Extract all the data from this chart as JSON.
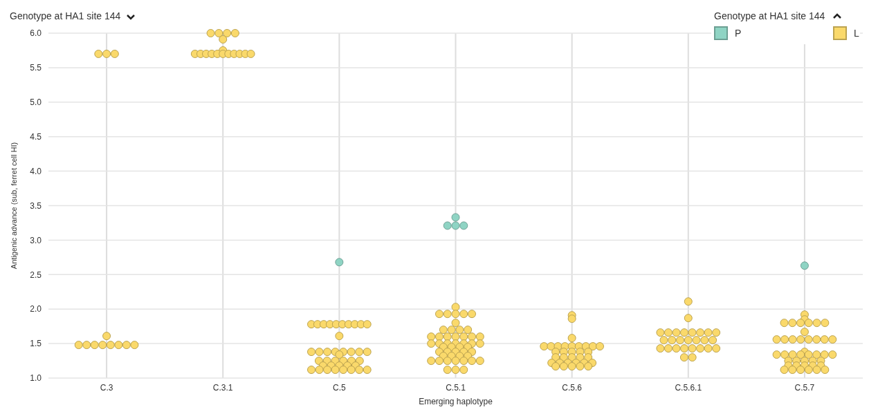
{
  "chart_data": {
    "type": "scatter",
    "title": "Genotype at HA1 site 144",
    "xlabel": "Emerging haplotype",
    "ylabel": "Antigenic advance (sub, ferret cell HI)",
    "legend_title": "Genotype at HA1 site 144",
    "categories": [
      "C.3",
      "C.3.1",
      "C.5",
      "C.5.1",
      "C.5.6",
      "C.5.6.1",
      "C.5.7"
    ],
    "ylim": [
      1,
      6
    ],
    "yticks": [
      {
        "value": 1,
        "label": "1.0"
      },
      {
        "value": 1.5,
        "label": "1.5"
      },
      {
        "value": 2,
        "label": "2.0"
      },
      {
        "value": 2.5,
        "label": "2.5"
      },
      {
        "value": 3,
        "label": "3.0"
      },
      {
        "value": 3.5,
        "label": "3.5"
      },
      {
        "value": 4,
        "label": "4.0"
      },
      {
        "value": 4.5,
        "label": "4.5"
      },
      {
        "value": 5,
        "label": "5.0"
      },
      {
        "value": 5.5,
        "label": "5.5"
      },
      {
        "value": 6,
        "label": "6.0"
      }
    ],
    "grid": true,
    "legend": "top right",
    "marker": "circle",
    "series": [
      {
        "name": "P",
        "color": "#8fd4c4",
        "x": [
          "C.5",
          "C.5.1",
          "C.5.1",
          "C.5.1",
          "C.5.1",
          "C.5.7"
        ],
        "values": [
          2.68,
          3.21,
          3.33,
          3.21,
          3.21,
          2.63
        ]
      },
      {
        "name": "L",
        "color": "#fad96b",
        "x": [
          "C.3",
          "C.3",
          "C.3",
          "C.3",
          "C.3",
          "C.3",
          "C.3",
          "C.3",
          "C.3",
          "C.3",
          "C.3",
          "C.3",
          "C.3.1",
          "C.3.1",
          "C.3.1",
          "C.3.1",
          "C.3.1",
          "C.3.1",
          "C.3.1",
          "C.3.1",
          "C.3.1",
          "C.3.1",
          "C.3.1",
          "C.3.1",
          "C.3.1",
          "C.3.1",
          "C.3.1",
          "C.3.1",
          "C.3.1",
          "C.5",
          "C.5",
          "C.5",
          "C.5",
          "C.5",
          "C.5",
          "C.5",
          "C.5",
          "C.5",
          "C.5",
          "C.5",
          "C.5",
          "C.5",
          "C.5",
          "C.5",
          "C.5",
          "C.5",
          "C.5",
          "C.5",
          "C.5",
          "C.5",
          "C.5",
          "C.5",
          "C.5",
          "C.5",
          "C.5",
          "C.5",
          "C.5",
          "C.5",
          "C.5",
          "C.5",
          "C.5",
          "C.5",
          "C.5",
          "C.5",
          "C.5",
          "C.5",
          "C.5",
          "C.5",
          "C.5.1",
          "C.5.1",
          "C.5.1",
          "C.5.1",
          "C.5.1",
          "C.5.1",
          "C.5.1",
          "C.5.1",
          "C.5.1",
          "C.5.1",
          "C.5.1",
          "C.5.1",
          "C.5.1",
          "C.5.1",
          "C.5.1",
          "C.5.1",
          "C.5.1",
          "C.5.1",
          "C.5.1",
          "C.5.1",
          "C.5.1",
          "C.5.1",
          "C.5.1",
          "C.5.1",
          "C.5.1",
          "C.5.1",
          "C.5.1",
          "C.5.1",
          "C.5.1",
          "C.5.1",
          "C.5.1",
          "C.5.1",
          "C.5.1",
          "C.5.1",
          "C.5.1",
          "C.5.1",
          "C.5.1",
          "C.5.1",
          "C.5.1",
          "C.5.1",
          "C.5.1",
          "C.5.1",
          "C.5.1",
          "C.5.1",
          "C.5.1",
          "C.5.1",
          "C.5.1",
          "C.5.1",
          "C.5.6",
          "C.5.6",
          "C.5.6",
          "C.5.6",
          "C.5.6",
          "C.5.6",
          "C.5.6",
          "C.5.6",
          "C.5.6",
          "C.5.6",
          "C.5.6",
          "C.5.6",
          "C.5.6",
          "C.5.6",
          "C.5.6",
          "C.5.6",
          "C.5.6",
          "C.5.6",
          "C.5.6",
          "C.5.6",
          "C.5.6",
          "C.5.6",
          "C.5.6",
          "C.5.6",
          "C.5.6",
          "C.5.6",
          "C.5.6",
          "C.5.6",
          "C.5.6",
          "C.5.6",
          "C.5.6",
          "C.5.6",
          "C.5.6",
          "C.5.6.1",
          "C.5.6.1",
          "C.5.6.1",
          "C.5.6.1",
          "C.5.6.1",
          "C.5.6.1",
          "C.5.6.1",
          "C.5.6.1",
          "C.5.6.1",
          "C.5.6.1",
          "C.5.6.1",
          "C.5.6.1",
          "C.5.6.1",
          "C.5.6.1",
          "C.5.6.1",
          "C.5.6.1",
          "C.5.6.1",
          "C.5.6.1",
          "C.5.6.1",
          "C.5.6.1",
          "C.5.6.1",
          "C.5.6.1",
          "C.5.6.1",
          "C.5.6.1",
          "C.5.6.1",
          "C.5.6.1",
          "C.5.6.1",
          "C.5.7",
          "C.5.7",
          "C.5.7",
          "C.5.7",
          "C.5.7",
          "C.5.7",
          "C.5.7",
          "C.5.7",
          "C.5.7",
          "C.5.7",
          "C.5.7",
          "C.5.7",
          "C.5.7",
          "C.5.7",
          "C.5.7",
          "C.5.7",
          "C.5.7",
          "C.5.7",
          "C.5.7",
          "C.5.7",
          "C.5.7",
          "C.5.7",
          "C.5.7",
          "C.5.7",
          "C.5.7",
          "C.5.7",
          "C.5.7",
          "C.5.7",
          "C.5.7",
          "C.5.7",
          "C.5.7",
          "C.5.7",
          "C.5.7",
          "C.5.7",
          "C.5.7",
          "C.5.7",
          "C.5.7",
          "C.5.7",
          "C.5.7",
          "C.5.7",
          "C.5.7",
          "C.5.7"
        ],
        "values": [
          5.7,
          5.7,
          5.7,
          1.48,
          1.48,
          1.48,
          1.48,
          1.48,
          1.48,
          1.48,
          1.48,
          1.61,
          6,
          6,
          6,
          6,
          5.91,
          5.75,
          5.7,
          5.7,
          5.7,
          5.7,
          5.7,
          5.7,
          5.7,
          5.7,
          5.7,
          5.7,
          5.7,
          1.78,
          1.78,
          1.78,
          1.78,
          1.78,
          1.78,
          1.78,
          1.78,
          1.78,
          1.78,
          1.61,
          1.38,
          1.38,
          1.38,
          1.38,
          1.38,
          1.38,
          1.38,
          1.38,
          1.34,
          1.25,
          1.25,
          1.25,
          1.25,
          1.25,
          1.25,
          1.18,
          1.18,
          1.18,
          1.18,
          1.18,
          1.12,
          1.12,
          1.12,
          1.12,
          1.12,
          1.12,
          1.12,
          1.12,
          2.03,
          1.93,
          1.93,
          1.93,
          1.93,
          1.93,
          1.8,
          1.7,
          1.7,
          1.7,
          1.7,
          1.6,
          1.6,
          1.6,
          1.6,
          1.6,
          1.6,
          1.6,
          1.5,
          1.5,
          1.5,
          1.5,
          1.5,
          1.5,
          1.5,
          1.45,
          1.45,
          1.45,
          1.45,
          1.38,
          1.38,
          1.38,
          1.38,
          1.38,
          1.32,
          1.32,
          1.32,
          1.32,
          1.25,
          1.25,
          1.25,
          1.25,
          1.25,
          1.25,
          1.25,
          1.12,
          1.12,
          1.12,
          1.91,
          1.86,
          1.58,
          1.46,
          1.46,
          1.46,
          1.46,
          1.46,
          1.46,
          1.46,
          1.46,
          1.46,
          1.38,
          1.38,
          1.38,
          1.38,
          1.38,
          1.3,
          1.3,
          1.3,
          1.3,
          1.3,
          1.22,
          1.22,
          1.22,
          1.22,
          1.22,
          1.22,
          1.17,
          1.17,
          1.17,
          1.17,
          1.17,
          2.11,
          1.87,
          1.66,
          1.66,
          1.66,
          1.66,
          1.66,
          1.66,
          1.66,
          1.66,
          1.55,
          1.55,
          1.55,
          1.55,
          1.55,
          1.55,
          1.55,
          1.43,
          1.43,
          1.43,
          1.43,
          1.43,
          1.43,
          1.43,
          1.43,
          1.3,
          1.3,
          1.92,
          1.85,
          1.8,
          1.8,
          1.8,
          1.8,
          1.8,
          1.8,
          1.67,
          1.56,
          1.56,
          1.56,
          1.56,
          1.56,
          1.56,
          1.56,
          1.56,
          1.38,
          1.34,
          1.34,
          1.34,
          1.34,
          1.34,
          1.34,
          1.34,
          1.34,
          1.25,
          1.25,
          1.25,
          1.25,
          1.25,
          1.18,
          1.18,
          1.18,
          1.18,
          1.18,
          1.12,
          1.12,
          1.12,
          1.12,
          1.12,
          1.12
        ]
      }
    ]
  }
}
